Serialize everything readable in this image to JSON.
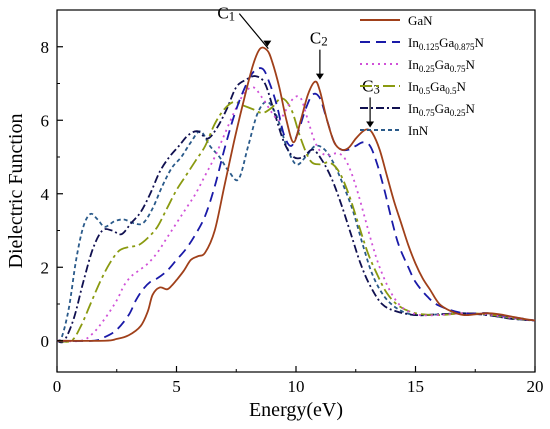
{
  "chart_data": {
    "type": "line",
    "xlabel": "Energy(eV)",
    "ylabel": "Dielectric Function",
    "xlim": [
      0,
      20
    ],
    "ylim": [
      -0.85,
      9
    ],
    "xticks": [
      0,
      5,
      10,
      15,
      20
    ],
    "yticks": [
      0,
      2,
      4,
      6,
      8
    ],
    "legend_position": "top-right",
    "grid": false,
    "series": [
      {
        "name": "GaN",
        "legend_html": "GaN",
        "color": "#a0401a",
        "dash": "solid",
        "x": [
          0,
          2.0,
          2.5,
          3.0,
          3.5,
          3.8,
          4.0,
          4.3,
          4.6,
          4.8,
          5.0,
          5.3,
          5.6,
          5.9,
          6.2,
          6.6,
          7.0,
          7.4,
          7.8,
          8.2,
          8.5,
          8.8,
          9.0,
          9.3,
          9.6,
          9.9,
          10.2,
          10.5,
          10.8,
          11.0,
          11.3,
          11.6,
          11.9,
          12.2,
          12.5,
          12.8,
          13.0,
          13.2,
          13.5,
          13.8,
          14.1,
          14.4,
          14.7,
          15.0,
          15.3,
          15.6,
          16.0,
          16.5,
          17.0,
          17.5,
          18.0,
          18.5,
          19.0,
          19.5,
          20
        ],
        "y": [
          0,
          0.0,
          0.05,
          0.15,
          0.4,
          0.8,
          1.25,
          1.45,
          1.4,
          1.5,
          1.65,
          1.9,
          2.2,
          2.3,
          2.4,
          3.0,
          4.2,
          5.4,
          6.5,
          7.5,
          7.95,
          7.9,
          7.6,
          6.9,
          6.0,
          5.4,
          6.0,
          6.7,
          7.05,
          6.8,
          6.0,
          5.4,
          5.2,
          5.25,
          5.5,
          5.7,
          5.75,
          5.65,
          5.2,
          4.5,
          3.8,
          3.2,
          2.6,
          2.1,
          1.7,
          1.4,
          1.0,
          0.8,
          0.7,
          0.72,
          0.75,
          0.72,
          0.66,
          0.6,
          0.55
        ]
      },
      {
        "name": "In0.125Ga0.875N",
        "legend_html": "In<tspan dy='3' font-size='9'>0.125</tspan><tspan dy='-3'>Ga</tspan><tspan dy='3' font-size='9'>0.875</tspan><tspan dy='-3'>N</tspan>",
        "color": "#1a1aa8",
        "dash": "10,6",
        "x": [
          0,
          1.5,
          2.0,
          2.5,
          3.0,
          3.3,
          3.6,
          3.9,
          4.2,
          4.6,
          5.0,
          5.4,
          5.8,
          6.2,
          6.6,
          7.0,
          7.4,
          7.8,
          8.2,
          8.6,
          8.9,
          9.2,
          9.5,
          9.8,
          10.1,
          10.4,
          10.7,
          11.0,
          11.3,
          11.6,
          11.9,
          12.2,
          12.5,
          12.8,
          13.1,
          13.4,
          13.7,
          14.0,
          14.3,
          14.7,
          15.0,
          15.5,
          16.0,
          17.0,
          18.0,
          19.0,
          20
        ],
        "y": [
          0,
          0.0,
          0.1,
          0.3,
          0.7,
          1.1,
          1.4,
          1.6,
          1.7,
          1.9,
          2.2,
          2.5,
          2.9,
          3.4,
          4.2,
          5.2,
          6.1,
          6.8,
          7.3,
          7.4,
          7.0,
          6.4,
          5.6,
          5.3,
          5.7,
          6.3,
          6.7,
          6.6,
          6.0,
          5.4,
          5.2,
          5.2,
          5.3,
          5.4,
          5.3,
          4.8,
          4.1,
          3.3,
          2.6,
          2.0,
          1.6,
          1.2,
          0.95,
          0.75,
          0.75,
          0.65,
          0.55
        ]
      },
      {
        "name": "In0.25Ga0.75N",
        "legend_html": "In<tspan dy='3' font-size='9'>0.25</tspan><tspan dy='-3'>Ga</tspan><tspan dy='3' font-size='9'>0.75</tspan><tspan dy='-3'>N</tspan>",
        "color": "#d050d8",
        "dash": "2,4",
        "x": [
          0,
          1.0,
          1.5,
          2.0,
          2.5,
          2.8,
          3.1,
          3.4,
          3.8,
          4.2,
          4.6,
          5.0,
          5.4,
          5.8,
          6.2,
          6.6,
          7.0,
          7.4,
          7.8,
          8.2,
          8.6,
          9.0,
          9.3,
          9.6,
          9.9,
          10.2,
          10.5,
          10.8,
          11.1,
          11.4,
          11.7,
          12.0,
          12.3,
          12.6,
          12.9,
          13.2,
          13.5,
          13.9,
          14.3,
          14.7,
          15.2,
          16.0,
          17.0,
          18.0,
          19.0,
          20
        ],
        "y": [
          0,
          0.0,
          0.2,
          0.6,
          1.1,
          1.5,
          1.75,
          1.9,
          2.1,
          2.4,
          2.8,
          3.2,
          3.6,
          4.0,
          4.5,
          5.0,
          5.6,
          6.2,
          6.7,
          6.9,
          6.6,
          6.2,
          6.0,
          6.3,
          6.6,
          6.6,
          6.0,
          5.4,
          5.1,
          5.05,
          5.1,
          5.0,
          4.6,
          4.0,
          3.3,
          2.6,
          2.0,
          1.4,
          1.0,
          0.8,
          0.7,
          0.7,
          0.75,
          0.72,
          0.62,
          0.55
        ]
      },
      {
        "name": "In0.5Ga0.5N",
        "legend_html": "In<tspan dy='3' font-size='9'>0.5</tspan><tspan dy='-3'>Ga</tspan><tspan dy='3' font-size='9'>0.5</tspan><tspan dy='-3'>N</tspan>",
        "color": "#8a9a10",
        "dash": "12,4,3,4",
        "x": [
          0,
          0.6,
          1.0,
          1.4,
          1.8,
          2.2,
          2.6,
          3.0,
          3.4,
          3.8,
          4.2,
          4.6,
          5.0,
          5.4,
          5.8,
          6.2,
          6.6,
          7.0,
          7.4,
          7.8,
          8.2,
          8.6,
          9.0,
          9.4,
          9.8,
          10.2,
          10.6,
          11.0,
          11.4,
          11.8,
          12.2,
          12.6,
          13.0,
          13.4,
          13.8,
          14.3,
          15.0,
          16.0,
          17.0,
          18.0,
          19.0,
          20
        ],
        "y": [
          0,
          0.0,
          0.4,
          1.0,
          1.6,
          2.1,
          2.45,
          2.55,
          2.6,
          2.8,
          3.1,
          3.6,
          4.1,
          4.5,
          4.9,
          5.3,
          5.9,
          6.3,
          6.5,
          6.4,
          6.3,
          6.2,
          6.35,
          6.6,
          6.3,
          5.5,
          4.9,
          4.8,
          4.85,
          4.6,
          4.0,
          3.2,
          2.4,
          1.8,
          1.3,
          0.95,
          0.75,
          0.7,
          0.75,
          0.72,
          0.62,
          0.55
        ]
      },
      {
        "name": "In0.75Ga0.25N",
        "legend_html": "In<tspan dy='3' font-size='9'>0.75</tspan><tspan dy='-3'>Ga</tspan><tspan dy='3' font-size='9'>0.25</tspan><tspan dy='-3'>N</tspan>",
        "color": "#101050",
        "dash": "8,3,2,3",
        "x": [
          0,
          0.3,
          0.7,
          1.1,
          1.5,
          1.9,
          2.3,
          2.7,
          3.1,
          3.5,
          3.9,
          4.3,
          4.7,
          5.1,
          5.5,
          5.9,
          6.3,
          6.7,
          7.1,
          7.5,
          7.9,
          8.3,
          8.7,
          9.1,
          9.5,
          9.9,
          10.3,
          10.7,
          11.1,
          11.5,
          11.9,
          12.3,
          12.7,
          13.1,
          13.6,
          14.2,
          15.0,
          16.0,
          17.0,
          18.0,
          19.0,
          20
        ],
        "y": [
          0,
          0.0,
          0.6,
          1.6,
          2.5,
          3.0,
          3.0,
          2.9,
          3.2,
          3.5,
          4.0,
          4.6,
          5.0,
          5.3,
          5.6,
          5.7,
          5.5,
          5.8,
          6.3,
          6.9,
          7.1,
          7.2,
          7.0,
          6.2,
          5.4,
          5.0,
          5.0,
          5.2,
          4.9,
          4.4,
          3.7,
          2.9,
          2.1,
          1.5,
          1.0,
          0.8,
          0.7,
          0.72,
          0.74,
          0.7,
          0.6,
          0.55
        ]
      },
      {
        "name": "InN",
        "legend_html": "InN",
        "color": "#2a5a8a",
        "dash": "4,3",
        "x": [
          0,
          0.2,
          0.5,
          0.8,
          1.1,
          1.4,
          1.7,
          2.0,
          2.4,
          2.8,
          3.2,
          3.6,
          4.0,
          4.4,
          4.8,
          5.2,
          5.6,
          6.0,
          6.4,
          6.8,
          7.2,
          7.6,
          8.0,
          8.4,
          8.8,
          9.2,
          9.6,
          10.0,
          10.4,
          10.8,
          11.2,
          11.6,
          12.0,
          12.4,
          12.8,
          13.2,
          13.7,
          14.3,
          15.0,
          16.0,
          17.0,
          18.0,
          19.0,
          20
        ],
        "y": [
          0,
          0.1,
          0.9,
          2.2,
          3.1,
          3.45,
          3.3,
          3.1,
          3.25,
          3.3,
          3.2,
          3.2,
          3.6,
          4.2,
          4.7,
          5.0,
          5.4,
          5.7,
          5.3,
          5.0,
          4.6,
          4.4,
          5.3,
          6.2,
          6.5,
          6.1,
          5.3,
          4.8,
          5.0,
          5.3,
          5.2,
          4.8,
          4.2,
          3.5,
          2.6,
          1.8,
          1.2,
          0.85,
          0.7,
          0.72,
          0.75,
          0.7,
          0.6,
          0.55
        ]
      }
    ],
    "annotations": [
      {
        "label": "C",
        "sub": "1",
        "x": 8.8,
        "y": 7.95
      },
      {
        "label": "C",
        "sub": "2",
        "x": 11.0,
        "y": 7.05
      },
      {
        "label": "C",
        "sub": "3",
        "x": 13.1,
        "y": 5.75
      }
    ]
  }
}
